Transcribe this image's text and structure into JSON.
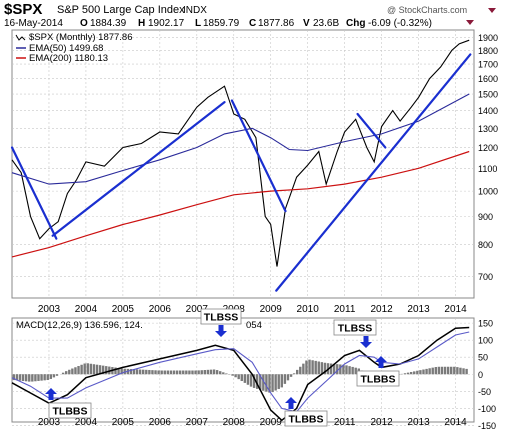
{
  "header": {
    "symbol": "$SPX",
    "name": "S&P 500 Large Cap Index",
    "exchange": "INDX",
    "date": "16-May-2014",
    "o_label": "O",
    "o_value": "1884.39",
    "h_label": "H",
    "h_value": "1902.17",
    "l_label": "L",
    "l_value": "1859.79",
    "c_label": "C",
    "c_value": "1877.86",
    "v_label": "V",
    "v_value": "23.6B",
    "chg_label": "Chg",
    "chg_value": "-6.09 (-0.32%)",
    "watermark": "@ StockCharts.com"
  },
  "legend": {
    "price": "$SPX (Monthly) 1877.86",
    "ema50": "EMA(50) 1499.68",
    "ema200": "EMA(200) 1180.13"
  },
  "macd_legend": {
    "label": "MACD(12,26,9) 136.596, 124.",
    "tail": "054"
  },
  "annotations": {
    "tlbss_1": "TLBSS",
    "tlbss_2": "TLBSS",
    "tlbbs_1": "TLBBS",
    "tlbbs_2": "TLBBS",
    "tlbbs_3": "TLBBS"
  },
  "colors": {
    "price": "#000000",
    "ema50": "#2a2a9a",
    "ema200": "#cc1111",
    "trendline": "#1a2fd0",
    "macd": "#000000",
    "signal": "#5a5ac8",
    "histogram": "#7a7a7a",
    "grid": "#c8c8c8",
    "arrow": "#1a2fd0"
  },
  "chart_data": [
    {
      "type": "line",
      "panel": "price",
      "scale": "log",
      "ylim": [
        640,
        1960
      ],
      "yticks": [
        700,
        800,
        900,
        1000,
        1100,
        1200,
        1300,
        1400,
        1500,
        1600,
        1700,
        1800,
        1900
      ],
      "xlim": [
        2002.0,
        2014.5
      ],
      "xticks": [
        2003,
        2004,
        2005,
        2006,
        2007,
        2008,
        2009,
        2010,
        2011,
        2012,
        2013,
        2014
      ],
      "series": [
        {
          "name": "$SPX (Monthly)",
          "x": [
            2002.0,
            2002.25,
            2002.5,
            2002.75,
            2003.0,
            2003.25,
            2003.5,
            2003.75,
            2004.0,
            2004.5,
            2005.0,
            2005.5,
            2006.0,
            2006.5,
            2007.0,
            2007.3,
            2007.75,
            2008.0,
            2008.3,
            2008.6,
            2008.85,
            2009.0,
            2009.17,
            2009.4,
            2009.7,
            2010.0,
            2010.3,
            2010.5,
            2010.8,
            2011.0,
            2011.3,
            2011.6,
            2011.8,
            2012.0,
            2012.3,
            2012.5,
            2012.8,
            2013.0,
            2013.3,
            2013.6,
            2013.9,
            2014.1,
            2014.37
          ],
          "values": [
            1140,
            1080,
            900,
            820,
            855,
            880,
            990,
            1050,
            1130,
            1110,
            1200,
            1220,
            1280,
            1270,
            1420,
            1480,
            1550,
            1380,
            1350,
            1250,
            900,
            870,
            730,
            930,
            1060,
            1115,
            1180,
            1030,
            1180,
            1280,
            1350,
            1200,
            1130,
            1310,
            1400,
            1340,
            1420,
            1480,
            1600,
            1680,
            1800,
            1850,
            1878
          ]
        },
        {
          "name": "EMA(50)",
          "x": [
            2002.0,
            2003.0,
            2004.0,
            2005.0,
            2006.0,
            2007.0,
            2007.75,
            2008.5,
            2009.0,
            2009.5,
            2010.0,
            2011.0,
            2012.0,
            2013.0,
            2014.37
          ],
          "values": [
            1080,
            1030,
            1040,
            1090,
            1140,
            1200,
            1270,
            1300,
            1250,
            1190,
            1185,
            1230,
            1270,
            1340,
            1500
          ]
        },
        {
          "name": "EMA(200)",
          "x": [
            2002.0,
            2003.0,
            2004.0,
            2005.0,
            2006.0,
            2007.0,
            2008.0,
            2009.0,
            2010.0,
            2011.0,
            2012.0,
            2013.0,
            2014.37
          ],
          "values": [
            760,
            790,
            830,
            870,
            905,
            945,
            985,
            1000,
            1010,
            1030,
            1060,
            1100,
            1180
          ]
        }
      ],
      "trendlines": [
        {
          "x": [
            2002.0,
            2003.2
          ],
          "values": [
            1200,
            820
          ]
        },
        {
          "x": [
            2003.1,
            2007.75
          ],
          "values": [
            830,
            1450
          ]
        },
        {
          "x": [
            2007.95,
            2009.4
          ],
          "values": [
            1460,
            920
          ]
        },
        {
          "x": [
            2009.15,
            2014.4
          ],
          "values": [
            660,
            1770
          ]
        },
        {
          "x": [
            2011.35,
            2012.1
          ],
          "values": [
            1380,
            1200
          ]
        }
      ]
    },
    {
      "type": "line",
      "panel": "macd",
      "ylim": [
        -140,
        165
      ],
      "yticks": [
        -150,
        -100,
        -50,
        0,
        50,
        100,
        150
      ],
      "xlim": [
        2002.0,
        2014.5
      ],
      "xticks": [
        2003,
        2004,
        2005,
        2006,
        2007,
        2008,
        2009,
        2010,
        2011,
        2012,
        2013,
        2014
      ],
      "series": [
        {
          "name": "MACD(12,26,9)",
          "x": [
            2002.0,
            2002.5,
            2003.0,
            2003.5,
            2004.0,
            2005.0,
            2006.0,
            2007.0,
            2007.5,
            2008.0,
            2008.5,
            2009.0,
            2009.3,
            2009.7,
            2010.0,
            2010.5,
            2011.0,
            2011.4,
            2011.8,
            2012.0,
            2012.5,
            2013.0,
            2013.5,
            2014.0,
            2014.37
          ],
          "values": [
            -25,
            -55,
            -85,
            -60,
            -10,
            20,
            45,
            70,
            85,
            70,
            0,
            -105,
            -135,
            -100,
            -30,
            10,
            55,
            70,
            35,
            20,
            30,
            55,
            100,
            135,
            137
          ]
        },
        {
          "name": "Signal",
          "x": [
            2002.0,
            2002.5,
            2003.0,
            2003.5,
            2004.0,
            2005.0,
            2006.0,
            2007.0,
            2007.5,
            2008.0,
            2008.5,
            2009.0,
            2009.3,
            2009.7,
            2010.0,
            2010.5,
            2011.0,
            2011.4,
            2011.8,
            2012.0,
            2012.5,
            2013.0,
            2013.5,
            2014.0,
            2014.37
          ],
          "values": [
            -10,
            -35,
            -70,
            -70,
            -40,
            5,
            35,
            60,
            72,
            75,
            35,
            -55,
            -100,
            -110,
            -70,
            -20,
            30,
            55,
            50,
            35,
            30,
            45,
            80,
            115,
            124
          ]
        }
      ]
    }
  ]
}
